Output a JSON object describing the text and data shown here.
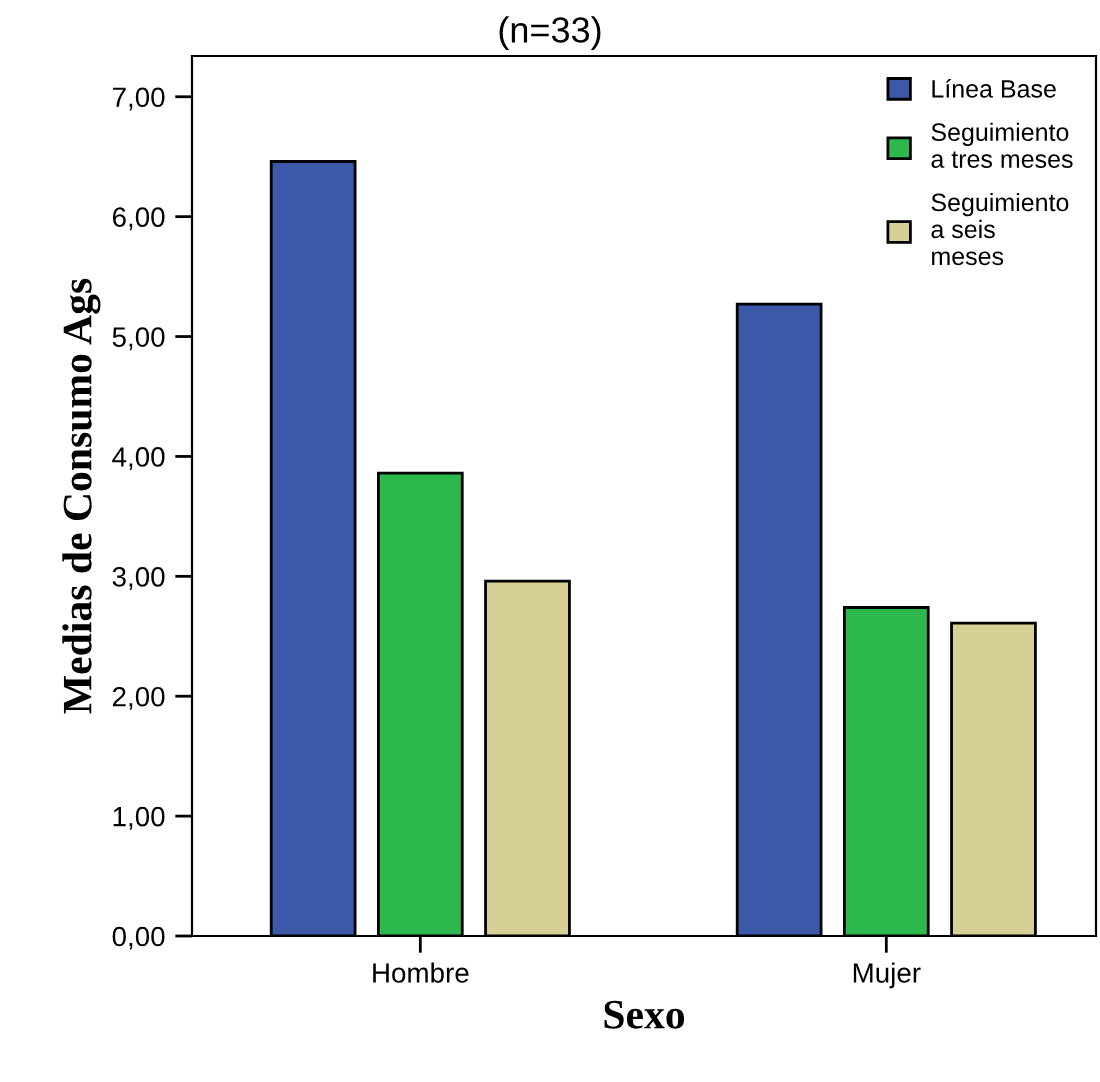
{
  "chart_data": {
    "type": "bar",
    "title": "(n=33)",
    "xlabel": "Sexo",
    "ylabel": "Medias de Consumo Ags",
    "categories": [
      "Hombre",
      "Mujer"
    ],
    "series": [
      {
        "name": "Línea Base",
        "color": "#3c58a8",
        "values": [
          6.46,
          5.27
        ]
      },
      {
        "name": "Seguimiento\na tres meses",
        "color": "#2db84d",
        "values": [
          3.86,
          2.74
        ]
      },
      {
        "name": "Seguimiento\na seis\nmeses",
        "color": "#d6cf96",
        "values": [
          2.96,
          2.61
        ]
      }
    ],
    "ylim": [
      0,
      7.34
    ],
    "yticks": [
      {
        "value": 0,
        "label": "0,00"
      },
      {
        "value": 1,
        "label": "1,00"
      },
      {
        "value": 2,
        "label": "2,00"
      },
      {
        "value": 3,
        "label": "3,00"
      },
      {
        "value": 4,
        "label": "4,00"
      },
      {
        "value": 5,
        "label": "5,00"
      },
      {
        "value": 6,
        "label": "6,00"
      },
      {
        "value": 7,
        "label": "7,00"
      }
    ],
    "legend": "top right",
    "grid": false
  }
}
